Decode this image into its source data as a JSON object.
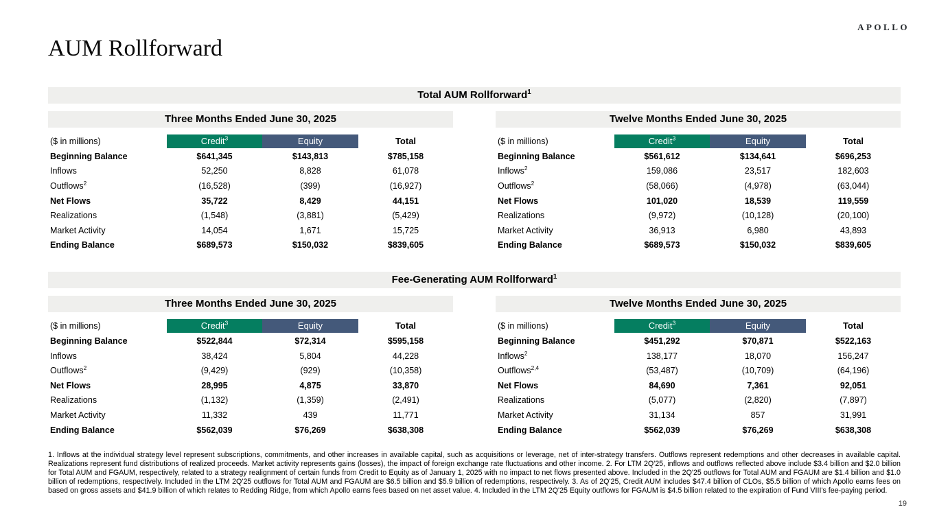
{
  "page": {
    "logo": "APOLLO",
    "title": "AUM Rollforward",
    "page_number": "19",
    "footnotes": "1. Inflows at the individual strategy level represent subscriptions, commitments, and other increases in available capital, such as acquisitions or leverage, net of inter-strategy transfers. Outflows represent redemptions and other decreases in available capital. Realizations represent fund distributions of realized proceeds. Market activity represents gains (losses), the impact of foreign exchange rate fluctuations and other income. 2. For LTM 2Q'25, inflows and outflows reflected above include $3.4 billion and $2.0 billion for Total AUM and FGAUM, respectively, related to a strategy realignment of certain funds from Credit to Equity as of January 1, 2025 with no impact to net flows presented above. Included in the 2Q'25 outflows for Total AUM and FGAUM are $1.4 billion and $1.0 billion of redemptions, respectively. Included in the LTM 2Q'25 outflows for Total AUM and FGAUM are $6.5 billion and $5.9 billion of redemptions, respectively. 3. As of 2Q'25, Credit AUM includes $47.4 billion of CLOs, $5.5 billion of which Apollo earns fees on based on gross assets and $41.9 billion of which relates to Redding Ridge, from which Apollo earns fees based on net asset value. 4. Included in the LTM 2Q'25 Equity outflows for FGAUM is $4.5 billion related to the expiration of Fund VIII's fee-paying period."
  },
  "colors": {
    "credit_header": "#057e60",
    "equity_header": "#44597a",
    "band_gray": "#efefed"
  },
  "tables": [
    {
      "title": "Total AUM Rollforward",
      "title_sup": "1",
      "halves": [
        {
          "period": "Three Months Ended June 30, 2025",
          "unit_label": "($ in millions)",
          "columns": [
            {
              "label": "Credit",
              "sup": "3",
              "style": "credit"
            },
            {
              "label": "Equity",
              "sup": "",
              "style": "equity"
            },
            {
              "label": "Total",
              "sup": "",
              "style": "total"
            }
          ],
          "rows": [
            {
              "label": "Beginning Balance",
              "sup": "",
              "bold": true,
              "values": [
                "$641,345",
                "$143,813",
                "$785,158"
              ]
            },
            {
              "label": "Inflows",
              "sup": "",
              "bold": false,
              "values": [
                "52,250",
                "8,828",
                "61,078"
              ]
            },
            {
              "label": "Outflows",
              "sup": "2",
              "bold": false,
              "values": [
                "(16,528)",
                "(399)",
                "(16,927)"
              ]
            },
            {
              "label": "Net Flows",
              "sup": "",
              "bold": true,
              "values": [
                "35,722",
                "8,429",
                "44,151"
              ]
            },
            {
              "label": "Realizations",
              "sup": "",
              "bold": false,
              "values": [
                "(1,548)",
                "(3,881)",
                "(5,429)"
              ]
            },
            {
              "label": "Market Activity",
              "sup": "",
              "bold": false,
              "values": [
                "14,054",
                "1,671",
                "15,725"
              ]
            },
            {
              "label": "Ending Balance",
              "sup": "",
              "bold": true,
              "values": [
                "$689,573",
                "$150,032",
                "$839,605"
              ]
            }
          ]
        },
        {
          "period": "Twelve Months Ended June 30, 2025",
          "unit_label": "($ in millions)",
          "columns": [
            {
              "label": "Credit",
              "sup": "3",
              "style": "credit"
            },
            {
              "label": "Equity",
              "sup": "",
              "style": "equity"
            },
            {
              "label": "Total",
              "sup": "",
              "style": "total"
            }
          ],
          "rows": [
            {
              "label": "Beginning Balance",
              "sup": "",
              "bold": true,
              "values": [
                "$561,612",
                "$134,641",
                "$696,253"
              ]
            },
            {
              "label": "Inflows",
              "sup": "2",
              "bold": false,
              "values": [
                "159,086",
                "23,517",
                "182,603"
              ]
            },
            {
              "label": "Outflows",
              "sup": "2",
              "bold": false,
              "values": [
                "(58,066)",
                "(4,978)",
                "(63,044)"
              ]
            },
            {
              "label": "Net Flows",
              "sup": "",
              "bold": true,
              "values": [
                "101,020",
                "18,539",
                "119,559"
              ]
            },
            {
              "label": "Realizations",
              "sup": "",
              "bold": false,
              "values": [
                "(9,972)",
                "(10,128)",
                "(20,100)"
              ]
            },
            {
              "label": "Market Activity",
              "sup": "",
              "bold": false,
              "values": [
                "36,913",
                "6,980",
                "43,893"
              ]
            },
            {
              "label": "Ending Balance",
              "sup": "",
              "bold": true,
              "values": [
                "$689,573",
                "$150,032",
                "$839,605"
              ]
            }
          ]
        }
      ]
    },
    {
      "title": "Fee-Generating AUM Rollforward",
      "title_sup": "1",
      "halves": [
        {
          "period": "Three Months Ended June 30, 2025",
          "unit_label": "($ in millions)",
          "columns": [
            {
              "label": "Credit",
              "sup": "3",
              "style": "credit"
            },
            {
              "label": "Equity",
              "sup": "",
              "style": "equity"
            },
            {
              "label": "Total",
              "sup": "",
              "style": "total"
            }
          ],
          "rows": [
            {
              "label": "Beginning Balance",
              "sup": "",
              "bold": true,
              "values": [
                "$522,844",
                "$72,314",
                "$595,158"
              ]
            },
            {
              "label": "Inflows",
              "sup": "",
              "bold": false,
              "values": [
                "38,424",
                "5,804",
                "44,228"
              ]
            },
            {
              "label": "Outflows",
              "sup": "2",
              "bold": false,
              "values": [
                "(9,429)",
                "(929)",
                "(10,358)"
              ]
            },
            {
              "label": "Net Flows",
              "sup": "",
              "bold": true,
              "values": [
                "28,995",
                "4,875",
                "33,870"
              ]
            },
            {
              "label": "Realizations",
              "sup": "",
              "bold": false,
              "values": [
                "(1,132)",
                "(1,359)",
                "(2,491)"
              ]
            },
            {
              "label": "Market Activity",
              "sup": "",
              "bold": false,
              "values": [
                "11,332",
                "439",
                "11,771"
              ]
            },
            {
              "label": "Ending Balance",
              "sup": "",
              "bold": true,
              "values": [
                "$562,039",
                "$76,269",
                "$638,308"
              ]
            }
          ]
        },
        {
          "period": "Twelve Months Ended June 30, 2025",
          "unit_label": "($ in millions)",
          "columns": [
            {
              "label": "Credit",
              "sup": "3",
              "style": "credit"
            },
            {
              "label": "Equity",
              "sup": "",
              "style": "equity"
            },
            {
              "label": "Total",
              "sup": "",
              "style": "total"
            }
          ],
          "rows": [
            {
              "label": "Beginning Balance",
              "sup": "",
              "bold": true,
              "values": [
                "$451,292",
                "$70,871",
                "$522,163"
              ]
            },
            {
              "label": "Inflows",
              "sup": "2",
              "bold": false,
              "values": [
                "138,177",
                "18,070",
                "156,247"
              ]
            },
            {
              "label": "Outflows",
              "sup": "2,4",
              "bold": false,
              "values": [
                "(53,487)",
                "(10,709)",
                "(64,196)"
              ]
            },
            {
              "label": "Net Flows",
              "sup": "",
              "bold": true,
              "values": [
                "84,690",
                "7,361",
                "92,051"
              ]
            },
            {
              "label": "Realizations",
              "sup": "",
              "bold": false,
              "values": [
                "(5,077)",
                "(2,820)",
                "(7,897)"
              ]
            },
            {
              "label": "Market Activity",
              "sup": "",
              "bold": false,
              "values": [
                "31,134",
                "857",
                "31,991"
              ]
            },
            {
              "label": "Ending Balance",
              "sup": "",
              "bold": true,
              "values": [
                "$562,039",
                "$76,269",
                "$638,308"
              ]
            }
          ]
        }
      ]
    }
  ]
}
